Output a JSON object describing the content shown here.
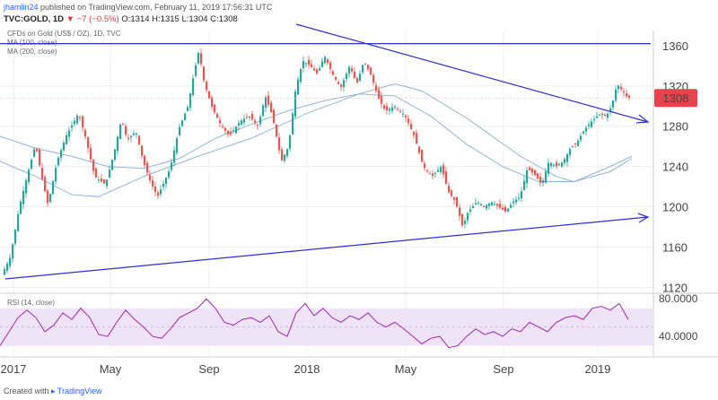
{
  "header": {
    "user": "jhamlin24",
    "published": "published on TradingView.com, February 11, 2019 17:56:31 UTC",
    "symbol": "TVC:GOLD, 1D",
    "change": "▼ −7 (−0.5%)",
    "open": "O:1314",
    "high": "H:1315",
    "low": "L:1304",
    "close": "C:1308"
  },
  "legend": {
    "title": "CFDs on Gold (US$ / OZ), 1D, TVC",
    "ma100": "MA (100, close)",
    "ma200": "MA (200, close)",
    "rsi": "RSI (14, close)"
  },
  "footer": {
    "created": "Created with",
    "brand": "TradingView"
  },
  "colors": {
    "up": "#26a69a",
    "down": "#ef5350",
    "trendline": "#2d2fd8",
    "ma": "#90b4d8",
    "rsi_line": "#9c27b0",
    "rsi_band": "#efe3f7",
    "price_badge": "#e8424c"
  },
  "chart_data": {
    "type": "candlestick",
    "title": "CFDs on Gold (US$ / OZ), 1D, TVC",
    "price_axis": {
      "ticks": [
        "1360",
        "1320",
        "1280",
        "1240",
        "1200",
        "1160",
        "1120"
      ],
      "ylim": [
        1115,
        1375
      ]
    },
    "time_axis": {
      "labels": [
        "2017",
        "May",
        "Sep",
        "2018",
        "May",
        "Sep",
        "2019"
      ]
    },
    "last_price": "1308",
    "price_path": [
      [
        0,
        1128
      ],
      [
        12,
        1150
      ],
      [
        22,
        1200
      ],
      [
        32,
        1235
      ],
      [
        40,
        1262
      ],
      [
        48,
        1225
      ],
      [
        54,
        1202
      ],
      [
        64,
        1245
      ],
      [
        74,
        1270
      ],
      [
        88,
        1293
      ],
      [
        96,
        1268
      ],
      [
        106,
        1230
      ],
      [
        118,
        1222
      ],
      [
        128,
        1255
      ],
      [
        136,
        1288
      ],
      [
        142,
        1266
      ],
      [
        152,
        1275
      ],
      [
        160,
        1245
      ],
      [
        168,
        1225
      ],
      [
        176,
        1210
      ],
      [
        190,
        1238
      ],
      [
        200,
        1278
      ],
      [
        210,
        1300
      ],
      [
        216,
        1330
      ],
      [
        222,
        1355
      ],
      [
        228,
        1323
      ],
      [
        236,
        1300
      ],
      [
        246,
        1282
      ],
      [
        256,
        1270
      ],
      [
        268,
        1285
      ],
      [
        278,
        1290
      ],
      [
        288,
        1280
      ],
      [
        296,
        1310
      ],
      [
        304,
        1290
      ],
      [
        314,
        1245
      ],
      [
        322,
        1260
      ],
      [
        330,
        1318
      ],
      [
        338,
        1345
      ],
      [
        346,
        1340
      ],
      [
        354,
        1332
      ],
      [
        362,
        1350
      ],
      [
        372,
        1330
      ],
      [
        380,
        1318
      ],
      [
        390,
        1340
      ],
      [
        398,
        1322
      ],
      [
        406,
        1345
      ],
      [
        414,
        1330
      ],
      [
        422,
        1308
      ],
      [
        430,
        1295
      ],
      [
        440,
        1300
      ],
      [
        452,
        1290
      ],
      [
        462,
        1270
      ],
      [
        472,
        1240
      ],
      [
        482,
        1230
      ],
      [
        492,
        1240
      ],
      [
        500,
        1215
      ],
      [
        508,
        1205
      ],
      [
        516,
        1180
      ],
      [
        522,
        1195
      ],
      [
        532,
        1205
      ],
      [
        540,
        1200
      ],
      [
        548,
        1205
      ],
      [
        556,
        1200
      ],
      [
        564,
        1195
      ],
      [
        572,
        1205
      ],
      [
        580,
        1210
      ],
      [
        588,
        1238
      ],
      [
        596,
        1232
      ],
      [
        604,
        1222
      ],
      [
        612,
        1245
      ],
      [
        620,
        1240
      ],
      [
        628,
        1245
      ],
      [
        636,
        1258
      ],
      [
        644,
        1265
      ],
      [
        652,
        1277
      ],
      [
        660,
        1285
      ],
      [
        668,
        1292
      ],
      [
        676,
        1290
      ],
      [
        682,
        1300
      ],
      [
        688,
        1322
      ],
      [
        694,
        1315
      ],
      [
        700,
        1308
      ]
    ],
    "ma100": [
      [
        0,
        1270
      ],
      [
        40,
        1258
      ],
      [
        80,
        1250
      ],
      [
        120,
        1240
      ],
      [
        160,
        1238
      ],
      [
        200,
        1248
      ],
      [
        240,
        1268
      ],
      [
        280,
        1282
      ],
      [
        320,
        1295
      ],
      [
        360,
        1305
      ],
      [
        400,
        1312
      ],
      [
        440,
        1310
      ],
      [
        480,
        1290
      ],
      [
        520,
        1262
      ],
      [
        560,
        1240
      ],
      [
        600,
        1225
      ],
      [
        640,
        1225
      ],
      [
        680,
        1235
      ],
      [
        704,
        1248
      ]
    ],
    "ma200": [
      [
        0,
        1245
      ],
      [
        40,
        1230
      ],
      [
        80,
        1212
      ],
      [
        110,
        1210
      ],
      [
        160,
        1230
      ],
      [
        220,
        1250
      ],
      [
        280,
        1268
      ],
      [
        340,
        1292
      ],
      [
        400,
        1312
      ],
      [
        440,
        1322
      ],
      [
        470,
        1315
      ],
      [
        520,
        1288
      ],
      [
        580,
        1250
      ],
      [
        620,
        1230
      ],
      [
        640,
        1225
      ],
      [
        680,
        1240
      ],
      [
        704,
        1250
      ]
    ],
    "rsi": {
      "title": "RSI (14, close)",
      "ticks": [
        "80.0000",
        "40.0000"
      ],
      "ylim": [
        20,
        85
      ],
      "band": [
        30,
        70
      ],
      "series": [
        [
          0,
          30
        ],
        [
          10,
          45
        ],
        [
          20,
          60
        ],
        [
          30,
          68
        ],
        [
          40,
          60
        ],
        [
          50,
          45
        ],
        [
          60,
          52
        ],
        [
          70,
          65
        ],
        [
          80,
          58
        ],
        [
          90,
          70
        ],
        [
          100,
          60
        ],
        [
          110,
          42
        ],
        [
          120,
          40
        ],
        [
          130,
          55
        ],
        [
          140,
          68
        ],
        [
          150,
          58
        ],
        [
          160,
          50
        ],
        [
          170,
          40
        ],
        [
          180,
          38
        ],
        [
          190,
          48
        ],
        [
          200,
          60
        ],
        [
          210,
          65
        ],
        [
          220,
          70
        ],
        [
          230,
          80
        ],
        [
          240,
          70
        ],
        [
          250,
          55
        ],
        [
          260,
          52
        ],
        [
          270,
          58
        ],
        [
          280,
          60
        ],
        [
          290,
          55
        ],
        [
          300,
          62
        ],
        [
          310,
          45
        ],
        [
          320,
          40
        ],
        [
          330,
          65
        ],
        [
          340,
          75
        ],
        [
          350,
          62
        ],
        [
          360,
          70
        ],
        [
          370,
          60
        ],
        [
          380,
          55
        ],
        [
          390,
          62
        ],
        [
          400,
          58
        ],
        [
          410,
          65
        ],
        [
          420,
          55
        ],
        [
          430,
          50
        ],
        [
          440,
          55
        ],
        [
          450,
          48
        ],
        [
          460,
          40
        ],
        [
          470,
          32
        ],
        [
          480,
          38
        ],
        [
          490,
          40
        ],
        [
          500,
          28
        ],
        [
          510,
          30
        ],
        [
          520,
          40
        ],
        [
          530,
          48
        ],
        [
          540,
          42
        ],
        [
          550,
          45
        ],
        [
          560,
          40
        ],
        [
          570,
          48
        ],
        [
          580,
          45
        ],
        [
          590,
          55
        ],
        [
          600,
          50
        ],
        [
          610,
          45
        ],
        [
          620,
          55
        ],
        [
          630,
          60
        ],
        [
          640,
          62
        ],
        [
          650,
          58
        ],
        [
          660,
          70
        ],
        [
          670,
          72
        ],
        [
          680,
          68
        ],
        [
          690,
          75
        ],
        [
          700,
          58
        ]
      ]
    }
  }
}
